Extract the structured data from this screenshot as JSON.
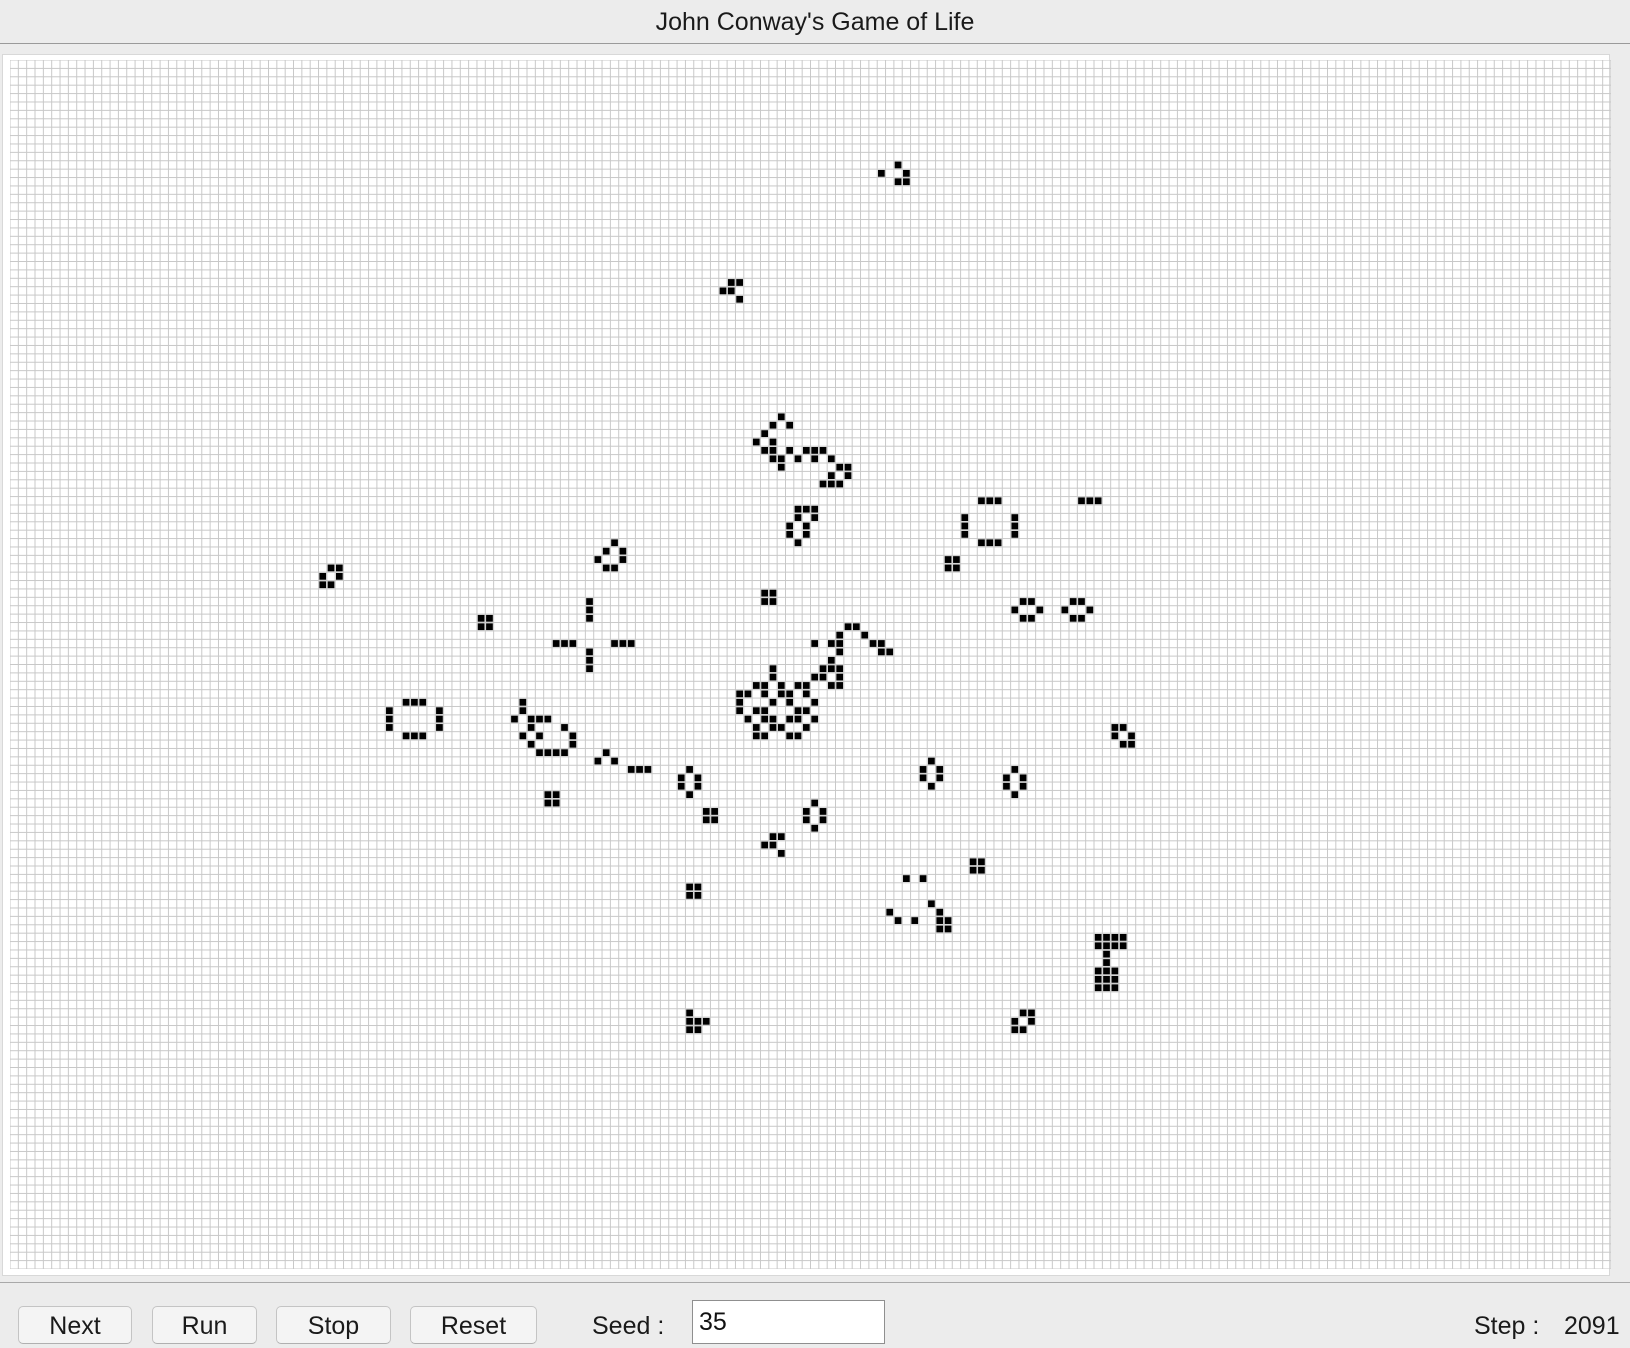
{
  "window": {
    "title": "John Conway's Game of Life"
  },
  "controls": {
    "next_label": "Next",
    "run_label": "Run",
    "stop_label": "Stop",
    "reset_label": "Reset",
    "seed_label": "Seed :",
    "seed_value": "35",
    "step_label": "Step :",
    "step_value": "2091"
  },
  "colors": {
    "live_cell": "#000000",
    "grid_line": "#c8c8c8",
    "board_background": "#ffffff"
  },
  "grid": {
    "columns": 192,
    "rows": 144,
    "live_cells": [
      [
        106,
        12
      ],
      [
        104,
        13
      ],
      [
        107,
        13
      ],
      [
        106,
        14
      ],
      [
        107,
        14
      ],
      [
        86,
        26
      ],
      [
        87,
        26
      ],
      [
        85,
        27
      ],
      [
        86,
        27
      ],
      [
        87,
        28
      ],
      [
        92,
        42
      ],
      [
        91,
        43
      ],
      [
        93,
        43
      ],
      [
        90,
        44
      ],
      [
        89,
        45
      ],
      [
        91,
        45
      ],
      [
        90,
        46
      ],
      [
        91,
        46
      ],
      [
        93,
        46
      ],
      [
        95,
        46
      ],
      [
        96,
        46
      ],
      [
        97,
        46
      ],
      [
        91,
        47
      ],
      [
        92,
        47
      ],
      [
        94,
        47
      ],
      [
        96,
        47
      ],
      [
        98,
        47
      ],
      [
        92,
        48
      ],
      [
        99,
        48
      ],
      [
        100,
        48
      ],
      [
        98,
        49
      ],
      [
        100,
        49
      ],
      [
        97,
        50
      ],
      [
        98,
        50
      ],
      [
        99,
        50
      ],
      [
        116,
        52
      ],
      [
        117,
        52
      ],
      [
        118,
        52
      ],
      [
        128,
        52
      ],
      [
        129,
        52
      ],
      [
        130,
        52
      ],
      [
        94,
        53
      ],
      [
        95,
        53
      ],
      [
        96,
        53
      ],
      [
        94,
        54
      ],
      [
        96,
        54
      ],
      [
        114,
        54
      ],
      [
        120,
        54
      ],
      [
        93,
        55
      ],
      [
        95,
        55
      ],
      [
        114,
        55
      ],
      [
        120,
        55
      ],
      [
        93,
        56
      ],
      [
        95,
        56
      ],
      [
        114,
        56
      ],
      [
        120,
        56
      ],
      [
        94,
        57
      ],
      [
        116,
        57
      ],
      [
        117,
        57
      ],
      [
        118,
        57
      ],
      [
        72,
        57
      ],
      [
        71,
        58
      ],
      [
        73,
        58
      ],
      [
        70,
        59
      ],
      [
        73,
        59
      ],
      [
        71,
        60
      ],
      [
        72,
        60
      ],
      [
        112,
        59
      ],
      [
        113,
        59
      ],
      [
        112,
        60
      ],
      [
        113,
        60
      ],
      [
        38,
        60
      ],
      [
        39,
        60
      ],
      [
        37,
        61
      ],
      [
        39,
        61
      ],
      [
        37,
        62
      ],
      [
        38,
        62
      ],
      [
        90,
        63
      ],
      [
        91,
        63
      ],
      [
        90,
        64
      ],
      [
        91,
        64
      ],
      [
        69,
        64
      ],
      [
        121,
        64
      ],
      [
        122,
        64
      ],
      [
        127,
        64
      ],
      [
        128,
        64
      ],
      [
        69,
        65
      ],
      [
        120,
        65
      ],
      [
        123,
        65
      ],
      [
        126,
        65
      ],
      [
        129,
        65
      ],
      [
        69,
        66
      ],
      [
        121,
        66
      ],
      [
        122,
        66
      ],
      [
        127,
        66
      ],
      [
        128,
        66
      ],
      [
        56,
        66
      ],
      [
        57,
        66
      ],
      [
        56,
        67
      ],
      [
        57,
        67
      ],
      [
        100,
        67
      ],
      [
        101,
        67
      ],
      [
        99,
        68
      ],
      [
        102,
        68
      ],
      [
        65,
        69
      ],
      [
        66,
        69
      ],
      [
        67,
        69
      ],
      [
        72,
        69
      ],
      [
        73,
        69
      ],
      [
        74,
        69
      ],
      [
        96,
        69
      ],
      [
        98,
        69
      ],
      [
        99,
        69
      ],
      [
        103,
        69
      ],
      [
        104,
        69
      ],
      [
        69,
        70
      ],
      [
        99,
        70
      ],
      [
        104,
        70
      ],
      [
        105,
        70
      ],
      [
        69,
        71
      ],
      [
        98,
        71
      ],
      [
        69,
        72
      ],
      [
        97,
        72
      ],
      [
        98,
        72
      ],
      [
        99,
        72
      ],
      [
        96,
        73
      ],
      [
        97,
        73
      ],
      [
        99,
        73
      ],
      [
        98,
        74
      ],
      [
        99,
        74
      ],
      [
        91,
        72
      ],
      [
        91,
        73
      ],
      [
        89,
        74
      ],
      [
        90,
        74
      ],
      [
        92,
        74
      ],
      [
        94,
        74
      ],
      [
        95,
        74
      ],
      [
        87,
        75
      ],
      [
        88,
        75
      ],
      [
        90,
        75
      ],
      [
        92,
        75
      ],
      [
        93,
        75
      ],
      [
        95,
        75
      ],
      [
        87,
        76
      ],
      [
        91,
        76
      ],
      [
        93,
        76
      ],
      [
        96,
        76
      ],
      [
        87,
        77
      ],
      [
        89,
        77
      ],
      [
        90,
        77
      ],
      [
        94,
        77
      ],
      [
        95,
        77
      ],
      [
        88,
        78
      ],
      [
        90,
        78
      ],
      [
        91,
        78
      ],
      [
        93,
        78
      ],
      [
        94,
        78
      ],
      [
        96,
        78
      ],
      [
        89,
        79
      ],
      [
        91,
        79
      ],
      [
        92,
        79
      ],
      [
        95,
        79
      ],
      [
        89,
        80
      ],
      [
        90,
        80
      ],
      [
        93,
        80
      ],
      [
        94,
        80
      ],
      [
        47,
        76
      ],
      [
        48,
        76
      ],
      [
        49,
        76
      ],
      [
        61,
        76
      ],
      [
        45,
        77
      ],
      [
        51,
        77
      ],
      [
        61,
        77
      ],
      [
        45,
        78
      ],
      [
        51,
        78
      ],
      [
        60,
        78
      ],
      [
        62,
        78
      ],
      [
        63,
        78
      ],
      [
        64,
        78
      ],
      [
        45,
        79
      ],
      [
        51,
        79
      ],
      [
        62,
        79
      ],
      [
        66,
        79
      ],
      [
        47,
        80
      ],
      [
        48,
        80
      ],
      [
        49,
        80
      ],
      [
        61,
        80
      ],
      [
        63,
        80
      ],
      [
        67,
        80
      ],
      [
        62,
        81
      ],
      [
        67,
        81
      ],
      [
        63,
        82
      ],
      [
        64,
        82
      ],
      [
        65,
        82
      ],
      [
        66,
        82
      ],
      [
        132,
        79
      ],
      [
        133,
        79
      ],
      [
        132,
        80
      ],
      [
        134,
        80
      ],
      [
        133,
        81
      ],
      [
        134,
        81
      ],
      [
        71,
        82
      ],
      [
        70,
        83
      ],
      [
        72,
        83
      ],
      [
        74,
        84
      ],
      [
        75,
        84
      ],
      [
        76,
        84
      ],
      [
        110,
        83
      ],
      [
        109,
        84
      ],
      [
        111,
        84
      ],
      [
        109,
        85
      ],
      [
        111,
        85
      ],
      [
        110,
        86
      ],
      [
        120,
        84
      ],
      [
        119,
        85
      ],
      [
        121,
        85
      ],
      [
        119,
        86
      ],
      [
        121,
        86
      ],
      [
        120,
        87
      ],
      [
        81,
        84
      ],
      [
        80,
        85
      ],
      [
        82,
        85
      ],
      [
        80,
        86
      ],
      [
        82,
        86
      ],
      [
        81,
        87
      ],
      [
        64,
        87
      ],
      [
        65,
        87
      ],
      [
        64,
        88
      ],
      [
        65,
        88
      ],
      [
        96,
        88
      ],
      [
        95,
        89
      ],
      [
        97,
        89
      ],
      [
        95,
        90
      ],
      [
        97,
        90
      ],
      [
        96,
        91
      ],
      [
        83,
        89
      ],
      [
        84,
        89
      ],
      [
        83,
        90
      ],
      [
        84,
        90
      ],
      [
        91,
        92
      ],
      [
        92,
        92
      ],
      [
        90,
        93
      ],
      [
        91,
        93
      ],
      [
        92,
        94
      ],
      [
        115,
        95
      ],
      [
        116,
        95
      ],
      [
        115,
        96
      ],
      [
        116,
        96
      ],
      [
        107,
        97
      ],
      [
        109,
        97
      ],
      [
        81,
        98
      ],
      [
        82,
        98
      ],
      [
        81,
        99
      ],
      [
        82,
        99
      ],
      [
        110,
        100
      ],
      [
        105,
        101
      ],
      [
        111,
        101
      ],
      [
        106,
        102
      ],
      [
        108,
        102
      ],
      [
        111,
        102
      ],
      [
        112,
        102
      ],
      [
        111,
        103
      ],
      [
        112,
        103
      ],
      [
        130,
        104
      ],
      [
        131,
        104
      ],
      [
        132,
        104
      ],
      [
        133,
        104
      ],
      [
        130,
        105
      ],
      [
        131,
        105
      ],
      [
        132,
        105
      ],
      [
        133,
        105
      ],
      [
        131,
        106
      ],
      [
        131,
        107
      ],
      [
        130,
        108
      ],
      [
        131,
        108
      ],
      [
        132,
        108
      ],
      [
        130,
        109
      ],
      [
        131,
        109
      ],
      [
        132,
        109
      ],
      [
        130,
        110
      ],
      [
        131,
        110
      ],
      [
        132,
        110
      ],
      [
        121,
        113
      ],
      [
        122,
        113
      ],
      [
        120,
        114
      ],
      [
        122,
        114
      ],
      [
        120,
        115
      ],
      [
        121,
        115
      ],
      [
        81,
        113
      ],
      [
        81,
        114
      ],
      [
        82,
        114
      ],
      [
        83,
        114
      ],
      [
        81,
        115
      ],
      [
        82,
        115
      ]
    ]
  }
}
